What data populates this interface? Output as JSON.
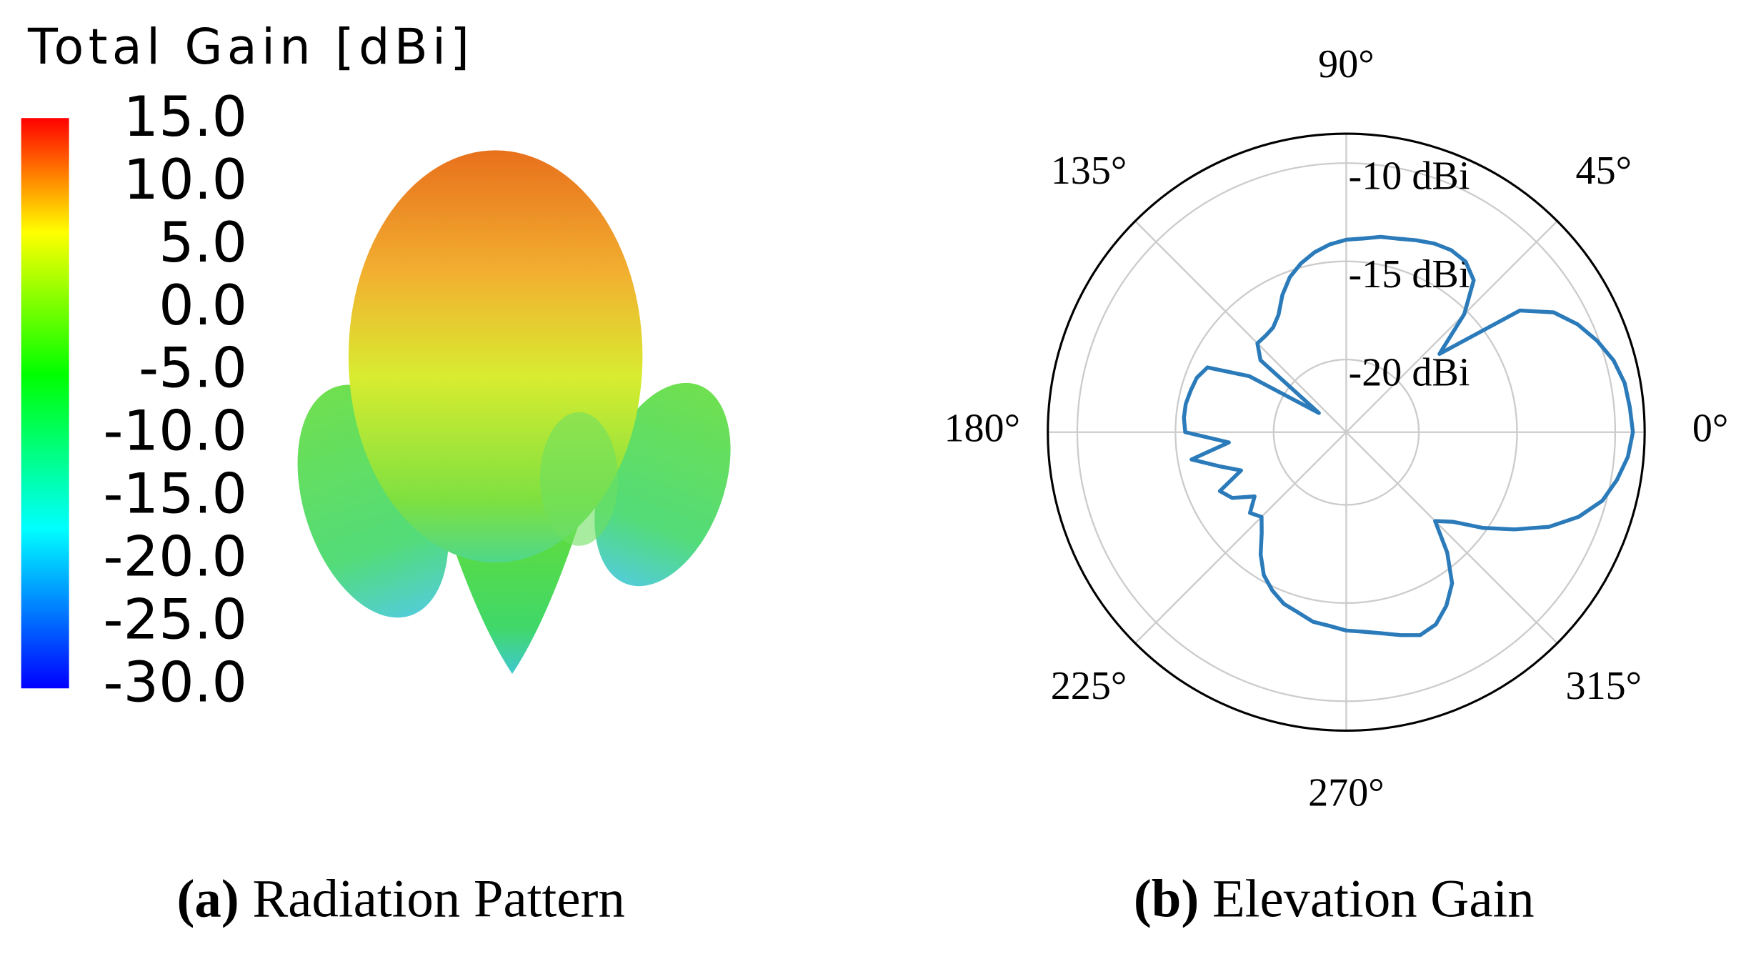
{
  "chart_data": [
    {
      "type": "pattern3d",
      "title": "Total Gain [dBi]",
      "colorbar": {
        "lim": [
          -30,
          15
        ],
        "ticks": [
          {
            "value": 15,
            "label": "15.0"
          },
          {
            "value": 10,
            "label": "10.0"
          },
          {
            "value": 5,
            "label": "5.0"
          },
          {
            "value": 0,
            "label": "0.0"
          },
          {
            "value": -5,
            "label": "-5.0"
          },
          {
            "value": -10,
            "label": "-10.0"
          },
          {
            "value": -15,
            "label": "-15.0"
          },
          {
            "value": -20,
            "label": "-20.0"
          },
          {
            "value": -25,
            "label": "-25.0"
          },
          {
            "value": -30,
            "label": "-30.0"
          }
        ]
      },
      "caption_tag": "(a)",
      "caption": "Radiation Pattern"
    },
    {
      "type": "polar",
      "theta": [
        0,
        5,
        10,
        15,
        20,
        25,
        30,
        35,
        40,
        45,
        50,
        55,
        60,
        65,
        70,
        75,
        80,
        85,
        90,
        95,
        100,
        105,
        110,
        115,
        120,
        125,
        130,
        135,
        140,
        145,
        150,
        155,
        160,
        165,
        170,
        175,
        180,
        185,
        190,
        195,
        200,
        205,
        210,
        215,
        220,
        225,
        230,
        235,
        240,
        245,
        250,
        255,
        260,
        265,
        270,
        275,
        280,
        285,
        290,
        295,
        300,
        305,
        310,
        315,
        320,
        325,
        330,
        335,
        340,
        345,
        350,
        355
      ],
      "series": [
        {
          "color": "#2b7bba",
          "values": [
            -9.1,
            -9.2,
            -9.3,
            -9.6,
            -10.1,
            -10.7,
            -11.5,
            -12.9,
            -17.5,
            -15.2,
            -13.6,
            -13.1,
            -13.0,
            -13.1,
            -13.3,
            -13.5,
            -13.6,
            -13.8,
            -13.9,
            -14.1,
            -14.4,
            -14.8,
            -15.3,
            -16.0,
            -16.8,
            -17.2,
            -17.3,
            -17.3,
            -18.0,
            -22.0,
            -18.0,
            -15.9,
            -15.6,
            -15.5,
            -15.4,
            -15.4,
            -15.5,
            -17.7,
            -15.7,
            -17.0,
            -18.0,
            -16.6,
            -17.0,
            -18.0,
            -17.3,
            -17.6,
            -17.0,
            -16.1,
            -15.3,
            -14.8,
            -14.4,
            -14.2,
            -13.9,
            -13.8,
            -13.6,
            -13.5,
            -13.3,
            -13.0,
            -12.7,
            -12.9,
            -13.5,
            -14.3,
            -15.7,
            -17.3,
            -16.6,
            -15.2,
            -13.8,
            -12.3,
            -11.1,
            -10.2,
            -9.7,
            -9.3
          ]
        }
      ],
      "rlim": [
        -23.7,
        -8.5
      ],
      "rticks": [
        {
          "value": -20,
          "label": "-20 dBi"
        },
        {
          "value": -15,
          "label": "-15 dBi"
        },
        {
          "value": -10,
          "label": "-10 dBi"
        }
      ],
      "thetaticks": [
        {
          "value": 0,
          "label": "0°"
        },
        {
          "value": 45,
          "label": "45°"
        },
        {
          "value": 90,
          "label": "90°"
        },
        {
          "value": 135,
          "label": "135°"
        },
        {
          "value": 180,
          "label": "180°"
        },
        {
          "value": 225,
          "label": "225°"
        },
        {
          "value": 270,
          "label": "270°"
        },
        {
          "value": 315,
          "label": "315°"
        }
      ],
      "grid": true,
      "caption_tag": "(b)",
      "caption": "Elevation Gain"
    }
  ]
}
